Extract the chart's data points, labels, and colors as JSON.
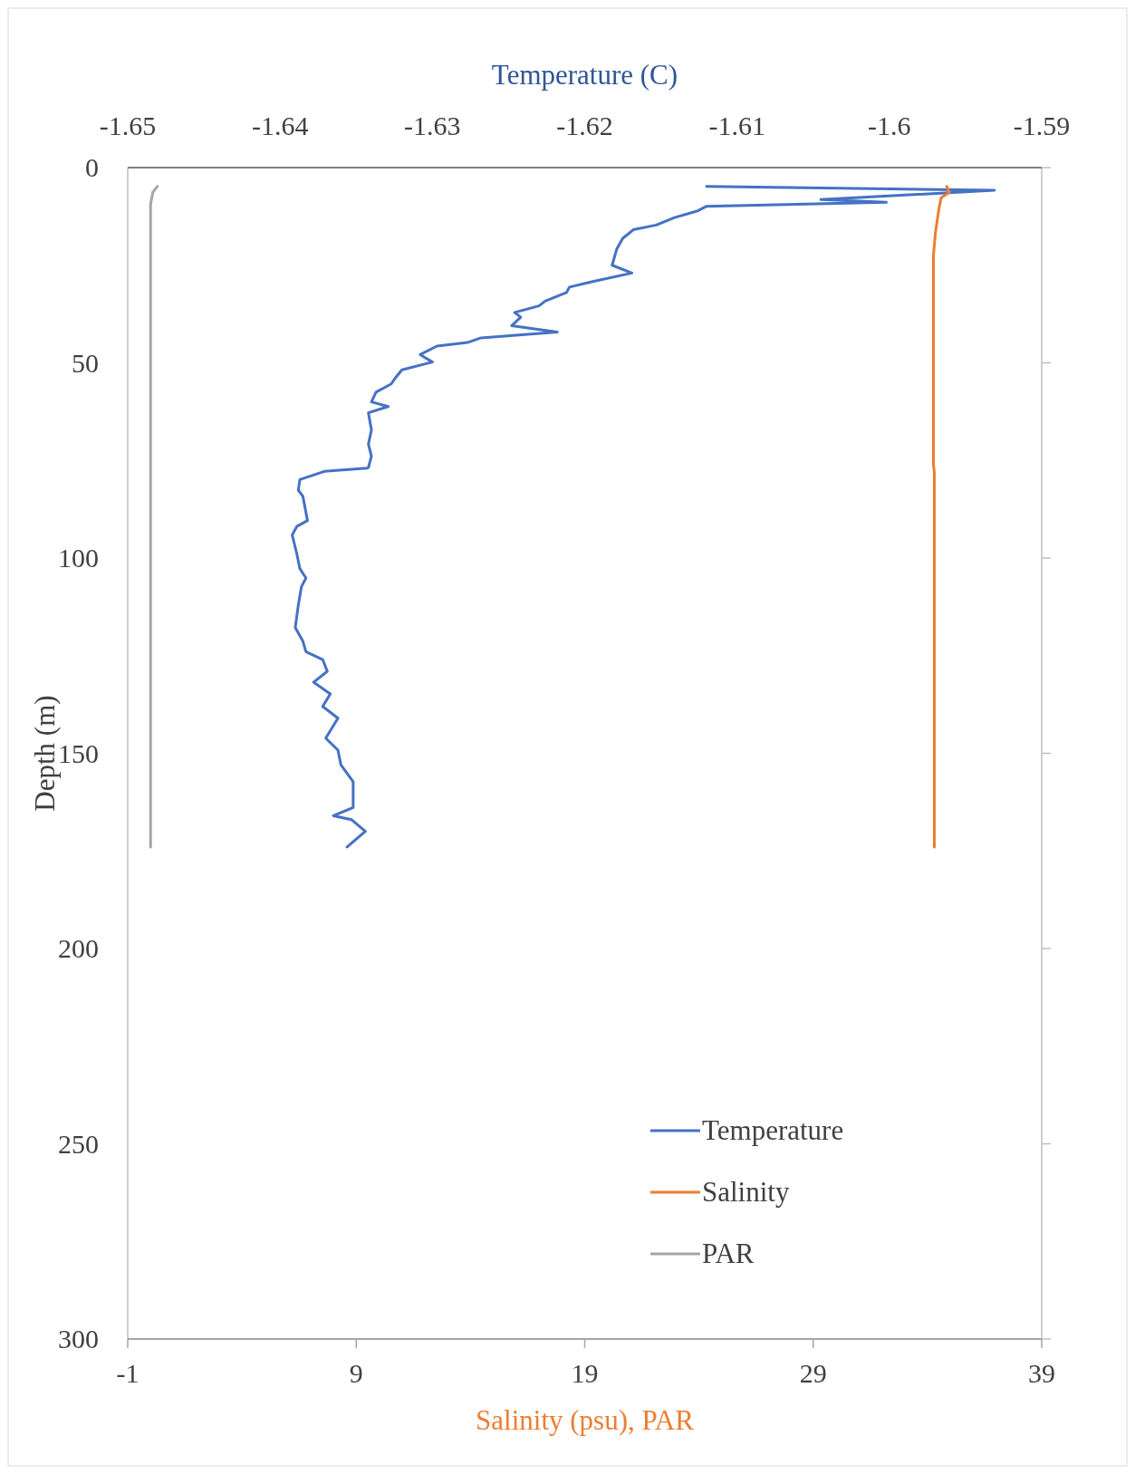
{
  "chart_data": {
    "type": "line",
    "xlabel": "Salinity (psu), PAR",
    "x2label": "Temperature (C)",
    "ylabel": "Depth (m)",
    "xlim": [
      -1,
      39
    ],
    "xticks": [
      -1,
      9,
      19,
      29,
      39
    ],
    "x2lim": [
      -1.65,
      -1.59
    ],
    "x2ticks": [
      -1.65,
      -1.64,
      -1.63,
      -1.62,
      -1.61,
      -1.6,
      -1.59
    ],
    "ylim": [
      300,
      0
    ],
    "yticks": [
      0,
      50,
      100,
      150,
      200,
      250,
      300
    ],
    "grid": false,
    "legend": "bottom right",
    "line_style": "solid",
    "marker": "none",
    "series": [
      {
        "name": "Temperature",
        "color": "#4472c4",
        "axis": "x2",
        "x": [
          -1.612,
          -1.5931,
          -1.6045,
          -1.6002,
          -1.612,
          -1.6126,
          -1.6141,
          -1.6153,
          -1.6168,
          -1.6175,
          -1.6179,
          -1.6182,
          -1.6169,
          -1.6194,
          -1.621,
          -1.6212,
          -1.6226,
          -1.623,
          -1.6246,
          -1.6242,
          -1.6248,
          -1.6218,
          -1.6268,
          -1.6277,
          -1.6297,
          -1.6308,
          -1.63,
          -1.632,
          -1.6324,
          -1.6327,
          -1.6337,
          -1.634,
          -1.6329,
          -1.6342,
          -1.634,
          -1.6342,
          -1.634,
          -1.6342,
          -1.6343,
          -1.6371,
          -1.6387,
          -1.6388,
          -1.6385,
          -1.6382,
          -1.6389,
          -1.6392,
          -1.6389,
          -1.6387,
          -1.6383,
          -1.6386,
          -1.6388,
          -1.639,
          -1.6385,
          -1.6383,
          -1.6372,
          -1.6369,
          -1.6378,
          -1.6367,
          -1.6372,
          -1.6362,
          -1.637,
          -1.6362,
          -1.636,
          -1.6352,
          -1.6352,
          -1.6365,
          -1.6353,
          -1.6344,
          -1.6356
        ],
        "values": [
          4.8,
          5.8,
          8.2,
          8.9,
          9.9,
          11.1,
          12.8,
          14.7,
          15.9,
          18.1,
          20.9,
          25,
          27,
          29.1,
          30.6,
          32,
          34.2,
          35.4,
          37.1,
          38.3,
          40.5,
          42.1,
          43.6,
          44.8,
          45.7,
          47.9,
          49.8,
          51.8,
          53.7,
          55.4,
          57.5,
          60,
          61.2,
          62.8,
          67.2,
          70.8,
          73.9,
          76.8,
          77,
          77.8,
          79.9,
          82.6,
          84.2,
          90.4,
          91.9,
          94.1,
          98.9,
          102.7,
          105.1,
          107.4,
          112,
          117.8,
          121.3,
          124,
          126,
          129,
          131.8,
          134.8,
          138,
          141,
          146.1,
          149.2,
          153,
          157.3,
          163.9,
          166,
          167,
          170,
          174
        ]
      },
      {
        "name": "Salinity",
        "color": "#ed7d31",
        "x": [
          34.84,
          34.96,
          34.6,
          34.5,
          34.35,
          34.26,
          34.26,
          34.3,
          34.3
        ],
        "values": [
          4.8,
          6.3,
          7.7,
          10.6,
          16.6,
          22.6,
          76,
          78,
          174
        ]
      },
      {
        "name": "PAR",
        "color": "#a5a5a5",
        "x": [
          0.3,
          0.1,
          0,
          0
        ],
        "values": [
          4.8,
          6.3,
          9.4,
          174
        ]
      }
    ]
  }
}
